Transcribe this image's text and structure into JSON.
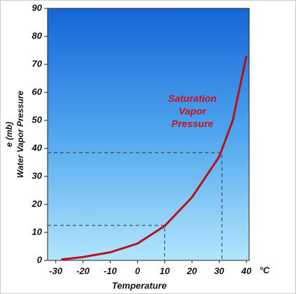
{
  "chart_data": {
    "type": "line",
    "xlabel": "Temperature",
    "xunit": "°C",
    "ylabel": "Water Vapor Pressure",
    "yunit": "e (mb)",
    "annotation": [
      "Saturation",
      "Vapor",
      "Pressure"
    ],
    "x": [
      -28,
      -20,
      -10,
      0,
      10,
      20,
      30,
      35,
      40
    ],
    "series": [
      {
        "color": "#b5121b",
        "values": [
          0.3,
          1.2,
          2.9,
          6,
          12.3,
          22.5,
          37,
          50,
          73
        ]
      }
    ],
    "reference_points": [
      {
        "x": 10,
        "y": 12.5
      },
      {
        "x": 31,
        "y": 38.5
      }
    ],
    "xlim": [
      -33,
      41
    ],
    "ylim": [
      0,
      90
    ],
    "xticks": [
      -30,
      -20,
      -10,
      0,
      10,
      20,
      30,
      40
    ],
    "yticks": [
      0,
      10,
      20,
      30,
      40,
      50,
      60,
      70,
      80,
      90
    ]
  }
}
